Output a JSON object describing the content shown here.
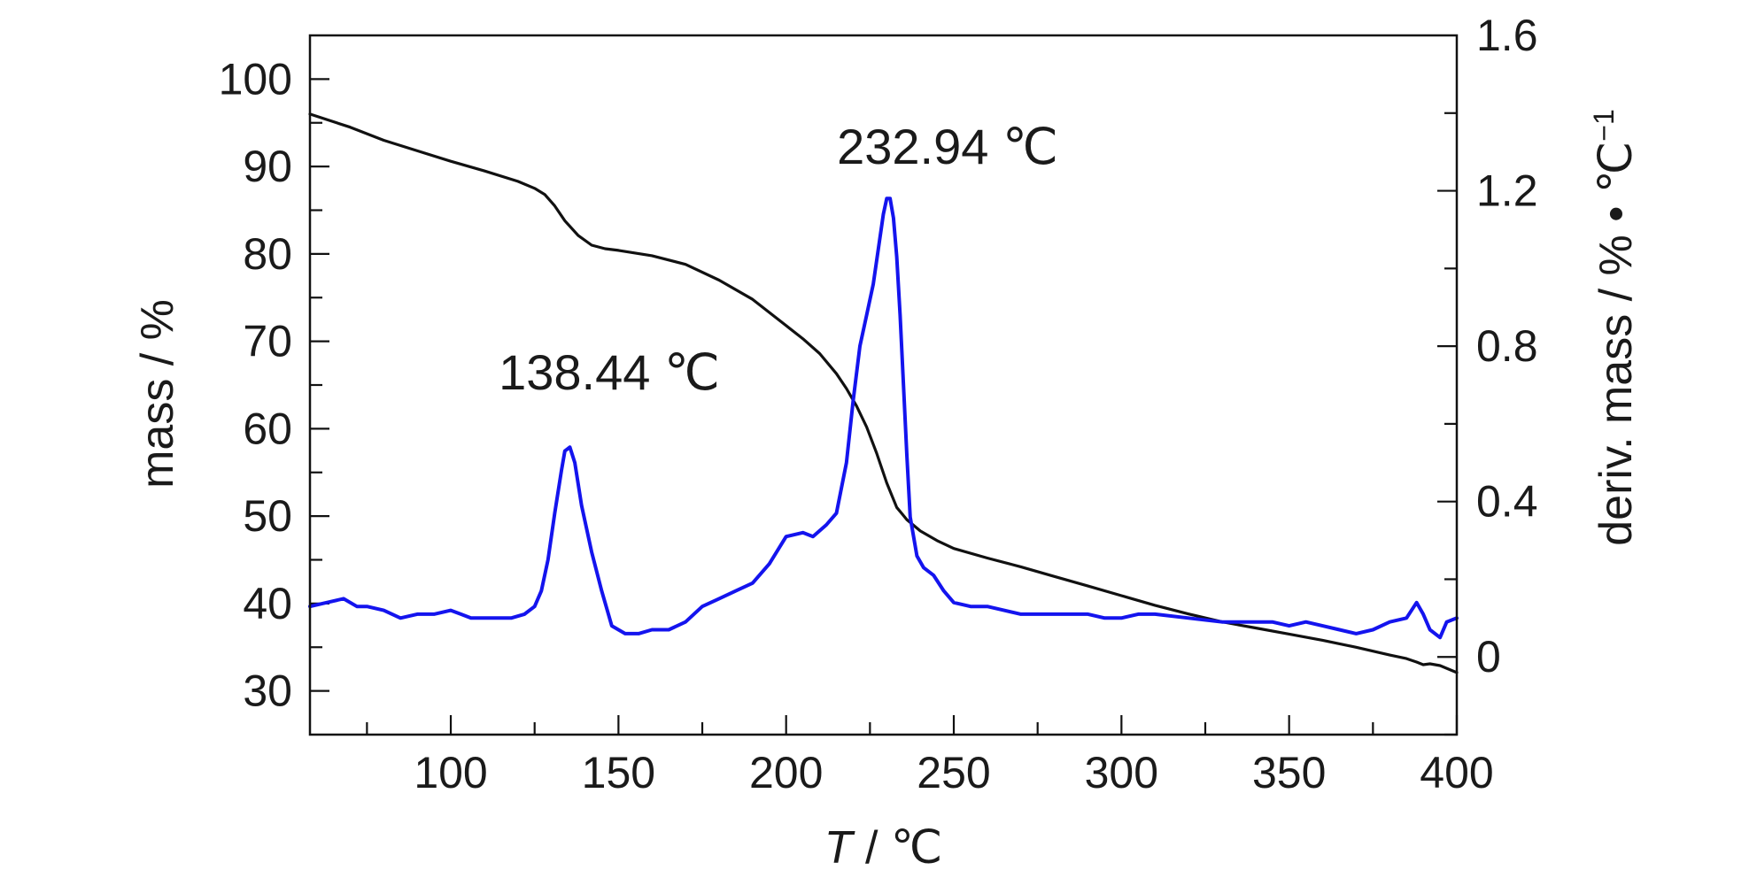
{
  "chart_data": {
    "type": "line",
    "x_label_var": "T",
    "x_label_unit": " / ℃",
    "ylabel_left": "mass / %",
    "ylabel_right_main": "deriv. mass / % • ℃",
    "ylabel_right_exp": "−1",
    "xlim": [
      58,
      400
    ],
    "ylim_left": [
      25,
      105
    ],
    "ylim_right": [
      -0.2,
      1.6
    ],
    "x_ticks": [
      100,
      150,
      200,
      250,
      300,
      350,
      400
    ],
    "y_left_ticks": [
      30,
      40,
      50,
      60,
      70,
      80,
      90,
      100
    ],
    "y_right_ticks": [
      0,
      0.4,
      0.8,
      1.2,
      1.6
    ],
    "y_right_tick_labels": [
      "0",
      "0.4",
      "0.8",
      "1.2",
      "1.6"
    ],
    "annotations": [
      {
        "text": "138.44 ℃",
        "x": 138.44
      },
      {
        "text": "232.94 ℃",
        "x": 232.94
      }
    ],
    "series": [
      {
        "axis": "left",
        "color": "#111111",
        "x": [
          58,
          70,
          80,
          90,
          100,
          110,
          120,
          125,
          128,
          131,
          134,
          138,
          142,
          146,
          150,
          160,
          170,
          180,
          190,
          200,
          205,
          210,
          215,
          218,
          221,
          224,
          227,
          230,
          233,
          236,
          240,
          245,
          250,
          260,
          270,
          280,
          290,
          300,
          310,
          320,
          330,
          340,
          350,
          360,
          370,
          380,
          385,
          388,
          390,
          392,
          395,
          400
        ],
        "y": [
          96,
          94.5,
          93,
          91.8,
          90.6,
          89.5,
          88.3,
          87.5,
          86.8,
          85.5,
          83.8,
          82.1,
          81,
          80.6,
          80.4,
          79.8,
          78.8,
          77,
          74.8,
          71.8,
          70.3,
          68.6,
          66.3,
          64.6,
          62.6,
          60.2,
          57.2,
          53.8,
          51,
          49.6,
          48.3,
          47.2,
          46.3,
          45.2,
          44.2,
          43.1,
          42,
          40.9,
          39.8,
          38.8,
          37.9,
          37.2,
          36.5,
          35.8,
          35,
          34.1,
          33.7,
          33.3,
          33,
          33.1,
          32.9,
          32.1
        ]
      },
      {
        "axis": "right",
        "color": "#1414ee",
        "x": [
          58,
          63,
          68,
          72,
          75,
          80,
          85,
          90,
          95,
          100,
          103,
          106,
          110,
          114,
          118,
          122,
          125,
          127,
          129,
          131,
          133,
          134,
          135.5,
          137,
          139,
          142,
          145,
          148,
          152,
          156,
          160,
          165,
          170,
          175,
          180,
          185,
          190,
          195,
          200,
          205,
          208,
          212,
          215,
          218,
          220,
          222,
          224,
          226,
          228,
          229,
          230,
          231,
          232,
          233,
          234,
          235,
          236,
          237,
          239,
          241,
          244,
          247,
          250,
          255,
          260,
          265,
          270,
          275,
          280,
          285,
          290,
          295,
          300,
          305,
          310,
          320,
          330,
          340,
          345,
          350,
          355,
          360,
          365,
          370,
          375,
          380,
          385,
          388,
          390,
          392,
          395,
          397,
          400
        ],
        "y": [
          0.13,
          0.14,
          0.15,
          0.13,
          0.13,
          0.12,
          0.1,
          0.11,
          0.11,
          0.12,
          0.11,
          0.1,
          0.1,
          0.1,
          0.1,
          0.11,
          0.13,
          0.17,
          0.25,
          0.37,
          0.48,
          0.53,
          0.54,
          0.5,
          0.39,
          0.27,
          0.17,
          0.08,
          0.06,
          0.06,
          0.07,
          0.07,
          0.09,
          0.13,
          0.15,
          0.17,
          0.19,
          0.24,
          0.31,
          0.32,
          0.31,
          0.34,
          0.37,
          0.5,
          0.66,
          0.8,
          0.88,
          0.96,
          1.08,
          1.14,
          1.18,
          1.18,
          1.13,
          1.03,
          0.88,
          0.7,
          0.52,
          0.36,
          0.26,
          0.23,
          0.21,
          0.17,
          0.14,
          0.13,
          0.13,
          0.12,
          0.11,
          0.11,
          0.11,
          0.11,
          0.11,
          0.1,
          0.1,
          0.11,
          0.11,
          0.1,
          0.09,
          0.09,
          0.09,
          0.08,
          0.09,
          0.08,
          0.07,
          0.06,
          0.07,
          0.09,
          0.1,
          0.14,
          0.11,
          0.07,
          0.05,
          0.09,
          0.1
        ]
      }
    ]
  }
}
